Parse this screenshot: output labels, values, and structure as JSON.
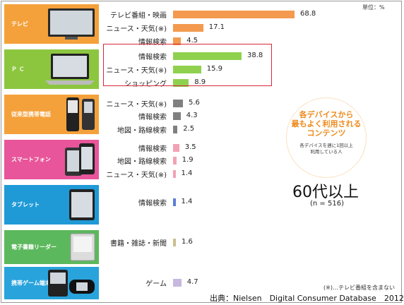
{
  "unit_label": "単位：%",
  "devices": [
    {
      "label": "テレビ",
      "color": "#f4a13b",
      "icon": "tv-icon"
    },
    {
      "label": "Ｐ Ｃ",
      "color": "#8cc63f",
      "icon": "laptop-icon"
    },
    {
      "label": "従来型携帯電話",
      "color": "#f4a13b",
      "icon": "flip-phone-icon"
    },
    {
      "label": "スマートフォン",
      "color": "#e8559a",
      "icon": "smartphone-icon"
    },
    {
      "label": "タブレット",
      "color": "#1f9ad7",
      "icon": "tablet-icon"
    },
    {
      "label": "電子書籍リーダー",
      "color": "#5cb85c",
      "icon": "ereader-icon"
    },
    {
      "label": "携帯ゲーム端末",
      "color": "#29a3dc",
      "icon": "handheld-game-icon"
    }
  ],
  "chart_data": {
    "type": "bar",
    "orientation": "horizontal",
    "unit": "%",
    "xlim": [
      0,
      100
    ],
    "grid": false,
    "groups": [
      {
        "device": "テレビ",
        "color": "#f39a4e",
        "items": [
          {
            "category": "テレビ番組・映画",
            "value": 68.8
          },
          {
            "category": "ニュース・天気(※)",
            "value": 17.1
          },
          {
            "category": "情報検索",
            "value": 4.5
          }
        ]
      },
      {
        "device": "ＰＣ",
        "color": "#8fd14f",
        "items": [
          {
            "category": "情報検索",
            "value": 38.8
          },
          {
            "category": "ニュース・天気(※)",
            "value": 15.9
          },
          {
            "category": "ショッピング",
            "value": 8.9
          }
        ]
      },
      {
        "device": "従来型携帯電話",
        "color": "#808080",
        "items": [
          {
            "category": "ニュース・天気(※)",
            "value": 5.6
          },
          {
            "category": "情報検索",
            "value": 4.3
          },
          {
            "category": "地図・路線検索",
            "value": 2.5
          }
        ]
      },
      {
        "device": "スマートフォン",
        "color": "#f3a2b4",
        "items": [
          {
            "category": "情報検索",
            "value": 3.5
          },
          {
            "category": "地図・路線検索",
            "value": 1.9
          },
          {
            "category": "ニュース・天気(※)",
            "value": 1.4
          }
        ]
      },
      {
        "device": "タブレット",
        "color": "#5b7fd6",
        "items": [
          {
            "category": "情報検索",
            "value": 1.4
          }
        ]
      },
      {
        "device": "電子書籍リーダー",
        "color": "#c9bf8c",
        "items": [
          {
            "category": "書籍・雑誌・新聞",
            "value": 1.6
          }
        ]
      },
      {
        "device": "携帯ゲーム端末",
        "color": "#c6b8e0",
        "items": [
          {
            "category": "ゲーム",
            "value": 4.7
          }
        ]
      }
    ]
  },
  "callout": {
    "title_line1": "各デバイスから",
    "title_line2": "最もよく利用される",
    "title_line3": "コンテンツ",
    "sub_line1": "各デバイスを週に1回以上",
    "sub_line2": "利用している人"
  },
  "age_label": "60代以上",
  "n_label": "(n = 516)",
  "note": "(※)…テレビ番組を含まない",
  "source": "出典：Nielsen　Digital Consumer Database　2012"
}
